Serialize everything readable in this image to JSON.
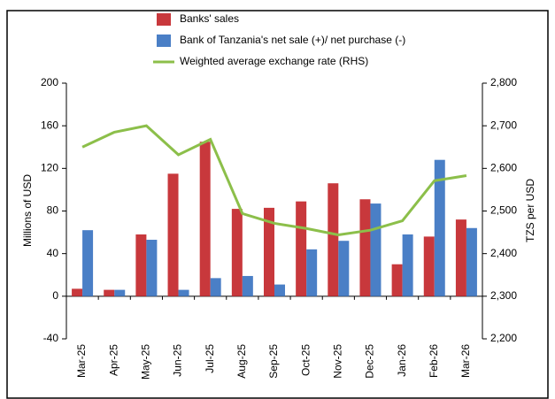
{
  "chart_data": {
    "type": "bar-line",
    "y_label": "Millions of USD",
    "y2_label": "TZS per USD",
    "categories": [
      "Mar-25",
      "Apr-25",
      "May-25",
      "Jun-25",
      "Jul-25",
      "Aug-25",
      "Sep-25",
      "Oct-25",
      "Nov-25",
      "Dec-25",
      "Jan-26",
      "Feb-26",
      "Mar-26"
    ],
    "series": [
      {
        "name": "Banks' sales",
        "type": "bar",
        "color": "#c8383c",
        "values": [
          7,
          6,
          58,
          115,
          145,
          82,
          83,
          89,
          106,
          91,
          30,
          56,
          72
        ]
      },
      {
        "name": "Bank of Tanzania's net sale (+)/ net purchase (-)",
        "type": "bar",
        "color": "#4a7fc6",
        "values": [
          62,
          6,
          53,
          6,
          17,
          19,
          11,
          44,
          52,
          87,
          58,
          128,
          64
        ]
      },
      {
        "name": "Weighted average exchange rate (RHS)",
        "type": "line",
        "axis": "y2",
        "color": "#8cbf4a",
        "values": [
          2650,
          2685,
          2700,
          2632,
          2668,
          2494,
          2471,
          2459,
          2444,
          2455,
          2477,
          2571,
          2583
        ]
      }
    ],
    "ylim": [
      -40,
      200
    ],
    "yticks": [
      -40,
      0,
      40,
      80,
      120,
      160,
      200
    ],
    "y2lim": [
      2200,
      2800
    ],
    "y2ticks": [
      {
        "value": 2200,
        "label": "2,200"
      },
      {
        "value": 2300,
        "label": "2,300"
      },
      {
        "value": 2400,
        "label": "2,400"
      },
      {
        "value": 2500,
        "label": "2,500"
      },
      {
        "value": 2600,
        "label": "2,600"
      },
      {
        "value": 2700,
        "label": "2,700"
      },
      {
        "value": 2800,
        "label": "2,800"
      }
    ],
    "legend": "top"
  }
}
